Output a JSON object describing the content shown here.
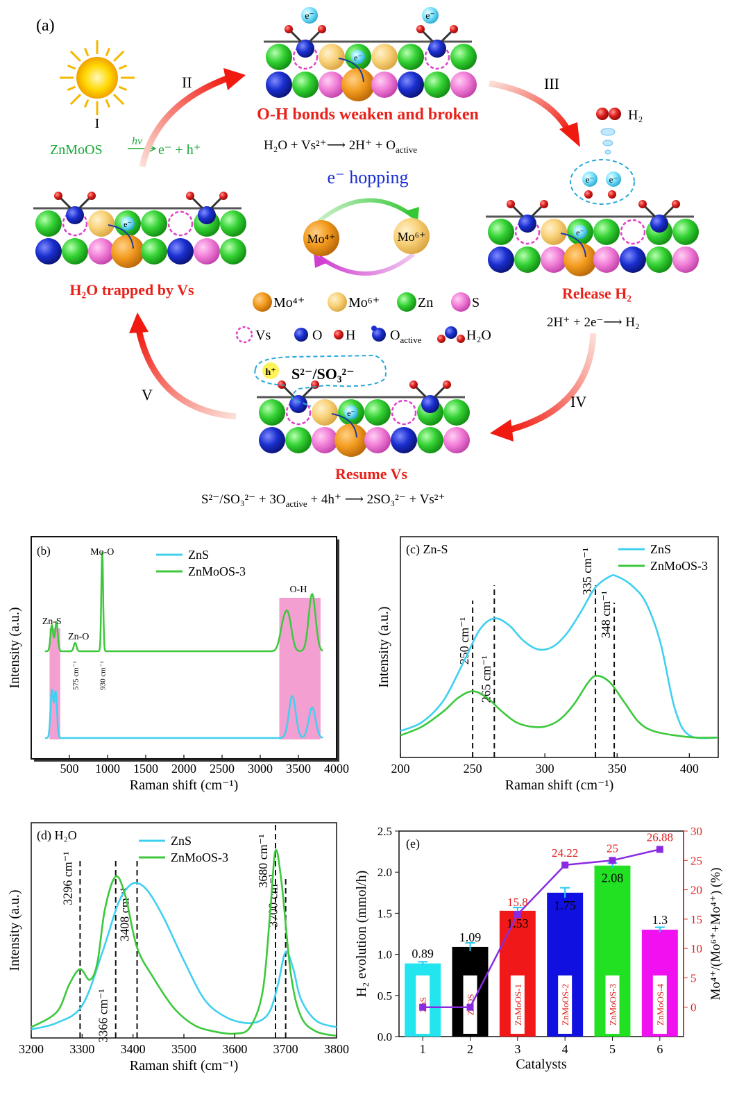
{
  "panel_a": {
    "label": "(a)",
    "steps": {
      "I": "I",
      "II": "II",
      "III": "III",
      "IV": "IV",
      "V": "V"
    },
    "photo_eq": {
      "lhs": "ZnMoOS",
      "arrow_label": "hν",
      "rhs": "e⁻ + h⁺"
    },
    "captions": {
      "top": "O-H bonds weaken and broken",
      "left": "H₂O trapped by Vs",
      "right": "Release H₂",
      "bottom": "Resume Vs"
    },
    "eq_top": "H₂O + Vs²⁺⟶ 2H⁺ + O",
    "eq_top_sub": "active",
    "eq_right": "2H⁺ + 2e⁻⟶ H₂",
    "eq_bottom_a": "S²⁻/SO₃²⁻ + 3O",
    "eq_bottom_sub": "active",
    "eq_bottom_b": " + 4h⁺ ⟶ 2SO₃²⁻ + Vs²⁺",
    "hopping_label": "e⁻ hopping",
    "mo4": "Mo⁴⁺",
    "mo6": "Mo⁶⁺",
    "h2_label": "H₂",
    "electron": "e⁻",
    "hole": "h⁺",
    "hole_species": "S²⁻/SO₃²⁻",
    "legend": [
      {
        "key": "mo4",
        "label": "Mo⁴⁺",
        "color": "#f39c1f"
      },
      {
        "key": "mo6",
        "label": "Mo⁶⁺",
        "color": "#f9d27a"
      },
      {
        "key": "zn",
        "label": "Zn",
        "color": "#2ecc40"
      },
      {
        "key": "s",
        "label": "S",
        "color": "#f27fd8"
      },
      {
        "key": "vs",
        "label": "Vs",
        "color": "#e040c8"
      },
      {
        "key": "o",
        "label": "O",
        "color": "#1a2fd0"
      },
      {
        "key": "h",
        "label": "H",
        "color": "#e0201c"
      },
      {
        "key": "oact",
        "label": "O",
        "sub": "active",
        "color": "#1a2fd0"
      },
      {
        "key": "h2o",
        "label": "H₂O",
        "color": "#1a2fd0"
      }
    ]
  },
  "chart_data": [
    {
      "id": "b",
      "type": "line",
      "panel_label": "(b)",
      "xlabel": "Raman shift (cm⁻¹)",
      "ylabel": "Intensity (a.u.)",
      "xlim": [
        0,
        4000
      ],
      "xticks": [
        500,
        1000,
        1500,
        2000,
        2500,
        3000,
        3500,
        4000
      ],
      "series": [
        {
          "name": "ZnS",
          "color": "#3fd0f0",
          "peaks": [
            [
              270,
              0.62
            ],
            [
              320,
              0.6
            ],
            [
              3420,
              0.55
            ],
            [
              3680,
              0.4
            ]
          ]
        },
        {
          "name": "ZnMoOS-3",
          "color": "#3cc83c",
          "peaks": [
            [
              270,
              0.25
            ],
            [
              330,
              0.28
            ],
            [
              575,
              0.08
            ],
            [
              930,
              0.95
            ],
            [
              3300,
              0.22
            ],
            [
              3370,
              0.3
            ],
            [
              3680,
              0.55
            ]
          ]
        }
      ],
      "annotations": [
        "Mo-O",
        "Zn-S",
        "Zn-O",
        "O-H",
        "575 cm⁻¹",
        "930 cm⁻¹"
      ]
    },
    {
      "id": "c",
      "type": "line",
      "panel_label": "(c) Zn-S",
      "xlabel": "Raman shift (cm⁻¹)",
      "ylabel": "Intensity (a.u.)",
      "xlim": [
        200,
        420
      ],
      "xticks": [
        200,
        250,
        300,
        350,
        400
      ],
      "series": [
        {
          "name": "ZnS",
          "color": "#3fd0f0",
          "x": [
            200,
            215,
            230,
            245,
            255,
            265,
            275,
            285,
            295,
            305,
            315,
            325,
            335,
            345,
            350,
            360,
            370,
            380,
            390,
            400,
            420
          ],
          "y": [
            0.12,
            0.16,
            0.26,
            0.45,
            0.58,
            0.63,
            0.6,
            0.53,
            0.49,
            0.5,
            0.56,
            0.66,
            0.77,
            0.82,
            0.82,
            0.78,
            0.7,
            0.52,
            0.22,
            0.1,
            0.09
          ]
        },
        {
          "name": "ZnMoOS-3",
          "color": "#3cc83c",
          "x": [
            200,
            215,
            230,
            240,
            250,
            260,
            270,
            280,
            290,
            300,
            310,
            320,
            330,
            336,
            345,
            355,
            365,
            375,
            390,
            405,
            420
          ],
          "y": [
            0.1,
            0.14,
            0.21,
            0.27,
            0.3,
            0.27,
            0.21,
            0.16,
            0.14,
            0.14,
            0.17,
            0.24,
            0.34,
            0.37,
            0.34,
            0.25,
            0.16,
            0.12,
            0.1,
            0.09,
            0.09
          ]
        }
      ],
      "vlines": [
        {
          "x": 250,
          "label": "250 cm⁻¹"
        },
        {
          "x": 265,
          "label": "265 cm⁻¹"
        },
        {
          "x": 335,
          "label": "335 cm⁻¹"
        },
        {
          "x": 348,
          "label": "348 cm⁻¹"
        }
      ]
    },
    {
      "id": "d",
      "type": "line",
      "panel_label": "(d) H₂O",
      "xlabel": "Raman shift (cm⁻¹)",
      "ylabel": "Intensity (a.u.)",
      "xlim": [
        3200,
        3800
      ],
      "xticks": [
        3200,
        3300,
        3400,
        3500,
        3600,
        3700,
        3800
      ],
      "series": [
        {
          "name": "ZnS",
          "color": "#3fd0f0",
          "x": [
            3200,
            3250,
            3300,
            3340,
            3370,
            3390,
            3408,
            3430,
            3460,
            3500,
            3540,
            3580,
            3620,
            3650,
            3670,
            3685,
            3700,
            3715,
            3730,
            3760,
            3800
          ],
          "y": [
            0.04,
            0.07,
            0.15,
            0.4,
            0.62,
            0.7,
            0.72,
            0.68,
            0.56,
            0.36,
            0.18,
            0.1,
            0.07,
            0.08,
            0.13,
            0.25,
            0.4,
            0.32,
            0.18,
            0.08,
            0.05
          ]
        },
        {
          "name": "ZnMoOS-3",
          "color": "#3cc83c",
          "x": [
            3200,
            3250,
            3275,
            3296,
            3315,
            3330,
            3345,
            3366,
            3385,
            3408,
            3440,
            3480,
            3520,
            3560,
            3600,
            3630,
            3655,
            3670,
            3680,
            3692,
            3710,
            3730,
            3760,
            3800
          ],
          "y": [
            0.05,
            0.12,
            0.25,
            0.32,
            0.27,
            0.35,
            0.6,
            0.75,
            0.66,
            0.42,
            0.28,
            0.14,
            0.06,
            0.03,
            0.02,
            0.05,
            0.22,
            0.6,
            0.87,
            0.72,
            0.3,
            0.1,
            0.03,
            0.01
          ]
        }
      ],
      "vlines": [
        {
          "x": 3296,
          "label": "3296 cm⁻¹"
        },
        {
          "x": 3366,
          "label": "3366 cm⁻¹"
        },
        {
          "x": 3408,
          "label": "3408 cm⁻¹"
        },
        {
          "x": 3680,
          "label": "3680 cm⁻¹"
        },
        {
          "x": 3700,
          "label": "3700 cm⁻¹"
        }
      ]
    },
    {
      "id": "e",
      "type": "bar",
      "panel_label": "(e)",
      "xlabel": "Catalysts",
      "ylabel": "H₂ evolution (mmol/h)",
      "y2label": "Mo⁴⁺/(Mo⁶⁺+Mo⁴⁺) (%)",
      "ylim": [
        0,
        2.5
      ],
      "yticks": [
        0.0,
        0.5,
        1.0,
        1.5,
        2.0,
        2.5
      ],
      "y2lim": [
        -5,
        30
      ],
      "y2ticks": [
        0,
        5,
        10,
        15,
        20,
        25,
        30
      ],
      "categories": [
        "1",
        "2",
        "3",
        "4",
        "5",
        "6"
      ],
      "bar_names": [
        "ZnS",
        "ZnOS",
        "ZnMoOS-1",
        "ZnMoOS-2",
        "ZnMoOS-3",
        "ZnMoOS-4"
      ],
      "bar_colors": [
        "#22e5f0",
        "#000000",
        "#f01818",
        "#1010e0",
        "#22e022",
        "#f010f0"
      ],
      "values": [
        0.89,
        1.09,
        1.53,
        1.75,
        2.08,
        1.3
      ],
      "errors": [
        0.02,
        0.05,
        0.04,
        0.06,
        0.03,
        0.03
      ],
      "value_labels": [
        "0.89",
        "1.09",
        "1.53",
        "1.75",
        "2.08",
        "1.3"
      ],
      "ratio": [
        0,
        0,
        15.8,
        24.22,
        25,
        26.88
      ],
      "ratio_labels": [
        "15.8",
        "24.22",
        "25",
        "26.88"
      ],
      "ratio_color": "#8a2be2"
    }
  ]
}
